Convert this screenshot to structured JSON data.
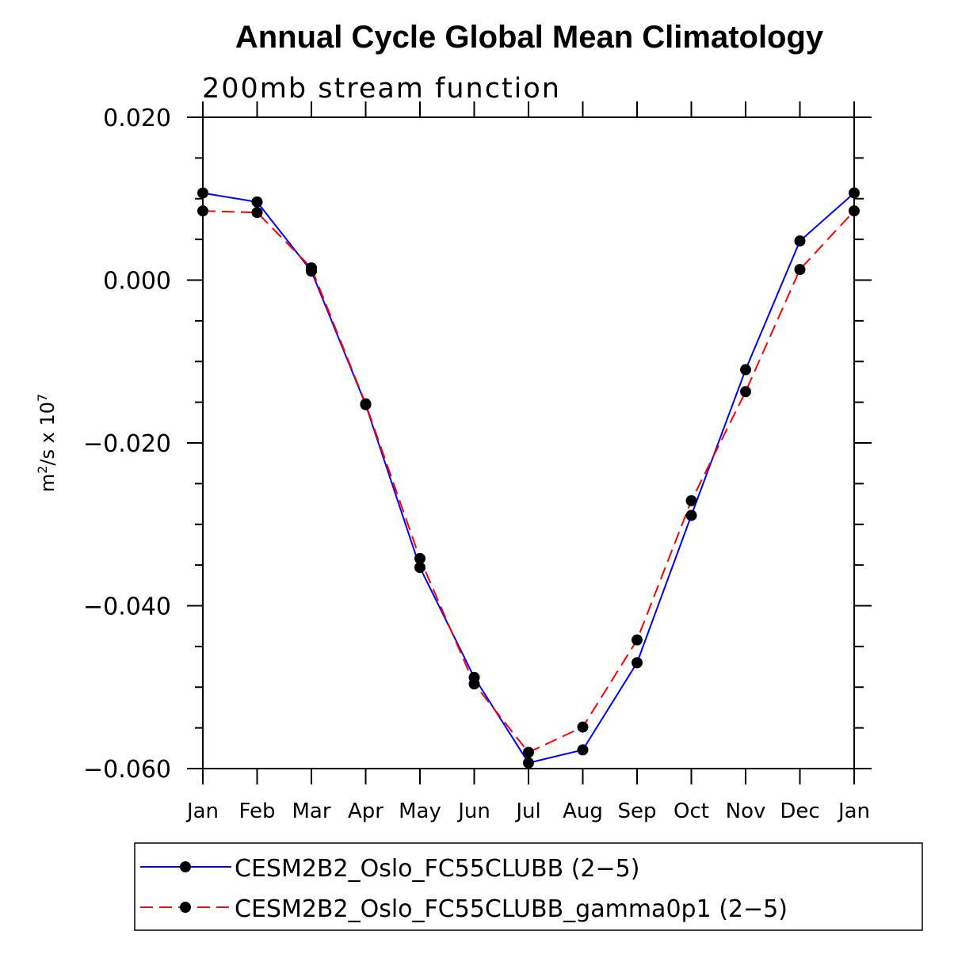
{
  "chart_data": {
    "type": "line",
    "title": "Annual Cycle Global Mean Climatology",
    "subtitle": "200mb stream function",
    "ylabel_main": "m",
    "ylabel_exp1": "2",
    "ylabel_mid": "/s x 10",
    "ylabel_exp2": "7",
    "xlabel": "",
    "categories": [
      "Jan",
      "Feb",
      "Mar",
      "Apr",
      "May",
      "Jun",
      "Jul",
      "Aug",
      "Sep",
      "Oct",
      "Nov",
      "Dec",
      "Jan"
    ],
    "ylim": [
      -0.06,
      0.02
    ],
    "yticks": [
      0.02,
      0.0,
      -0.02,
      -0.04,
      -0.06
    ],
    "ytick_labels": [
      "0.020",
      "0.000",
      "−0.020",
      "−0.040",
      "−0.060"
    ],
    "y_minor_step": 0.005,
    "series": [
      {
        "name": "CESM2B2_Oslo_FC55CLUBB (2−5)",
        "color": "#0000ff",
        "dash": "solid",
        "values": [
          0.0107,
          0.0096,
          0.0011,
          -0.0153,
          -0.0353,
          -0.0488,
          -0.0593,
          -0.0577,
          -0.047,
          -0.0289,
          -0.011,
          0.0048,
          0.0107
        ]
      },
      {
        "name": "CESM2B2_Oslo_FC55CLUBB_gamma0p1 (2−5)",
        "color": "#ff0000",
        "dash": "dashed",
        "values": [
          0.0085,
          0.0083,
          0.0015,
          -0.0152,
          -0.0342,
          -0.0496,
          -0.058,
          -0.0549,
          -0.0442,
          -0.0271,
          -0.0137,
          0.0013,
          0.0085
        ]
      }
    ]
  }
}
